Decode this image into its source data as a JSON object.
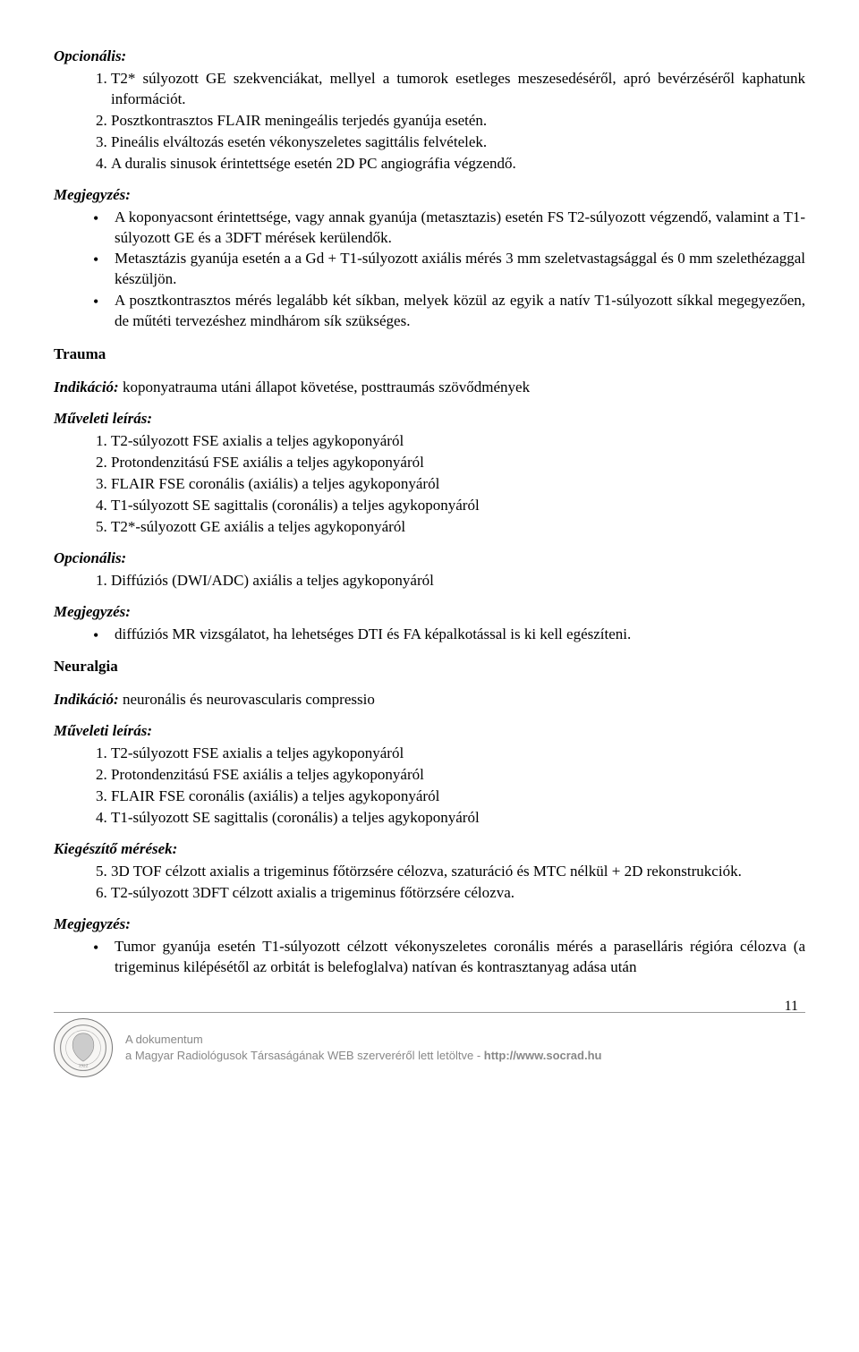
{
  "section1": {
    "opcionalis_label": "Opcionális:",
    "opcionalis_items": [
      "T2* súlyozott GE szekvenciákat, mellyel a tumorok esetleges meszesedéséről, apró bevérzéséről kaphatunk információt.",
      "Posztkontrasztos FLAIR meningeális terjedés gyanúja esetén.",
      "Pineális elváltozás esetén vékonyszeletes sagittális felvételek.",
      "A duralis sinusok érintettsége esetén 2D PC angiográfia végzendő."
    ],
    "megjegyzes_label": "Megjegyzés:",
    "megjegyzes_items": [
      "A koponyacsont érintettsége, vagy annak gyanúja (metasztazis) esetén FS T2-súlyozott végzendő, valamint a T1-súlyozott GE és a 3DFT mérések kerülendők.",
      "Metasztázis gyanúja esetén a a Gd + T1-súlyozott axiális mérés 3 mm szeletvastagsággal és 0 mm szelethézaggal készüljön.",
      "A posztkontrasztos mérés legalább két síkban, melyek közül az egyik a natív T1-súlyozott síkkal megegyezően, de műtéti tervezéshez mindhárom sík szükséges."
    ]
  },
  "trauma": {
    "heading": "Trauma",
    "indikacio_label": "Indikáció:",
    "indikacio_text": " koponyatrauma utáni állapot követése, posttraumás szövődmények",
    "muveleti_label": "Műveleti leírás:",
    "muveleti_items": [
      "T2-súlyozott FSE axialis a teljes agykoponyáról",
      "Protondenzitású FSE axiális a teljes agykoponyáról",
      "FLAIR FSE coronális (axiális) a teljes agykoponyáról",
      "T1-súlyozott SE sagittalis (coronális) a teljes agykoponyáról",
      "T2*-súlyozott GE axiális a teljes agykoponyáról"
    ],
    "opcionalis_label": "Opcionális:",
    "opcionalis_items": [
      "Diffúziós (DWI/ADC) axiális a teljes agykoponyáról"
    ],
    "megjegyzes_label": "Megjegyzés:",
    "megjegyzes_items": [
      "diffúziós MR vizsgálatot, ha lehetséges DTI és FA képalkotással is ki kell egészíteni."
    ]
  },
  "neuralgia": {
    "heading": "Neuralgia",
    "indikacio_label": "Indikáció:",
    "indikacio_text": " neuronális és neurovascularis compressio",
    "muveleti_label": "Műveleti leírás:",
    "muveleti_items": [
      "T2-súlyozott FSE axialis a teljes agykoponyáról",
      "Protondenzitású FSE axiális a teljes agykoponyáról",
      "FLAIR FSE coronális (axiális) a teljes agykoponyáról",
      "T1-súlyozott SE sagittalis (coronális) a teljes agykoponyáról"
    ],
    "kiegeszito_label": "Kiegészítő mérések:",
    "kiegeszito_start": 5,
    "kiegeszito_items": [
      "3D TOF célzott axialis a trigeminus főtörzsére célozva, szaturáció és MTC nélkül + 2D rekonstrukciók.",
      "T2-súlyozott 3DFT célzott axialis a trigeminus főtörzsére célozva."
    ],
    "megjegyzes_label": "Megjegyzés:",
    "megjegyzes_items": [
      "Tumor gyanúja esetén T1-súlyozott célzott vékonyszeletes coronális mérés a paraselláris régióra célozva (a trigeminus kilépésétől az orbitát is belefoglalva) natívan és kontrasztanyag adása után"
    ]
  },
  "footer": {
    "line1": "A dokumentum",
    "line2_a": "a Magyar Radiológusok Társaságának WEB szerveréről lett letöltve  -  ",
    "line2_b": "http://www.socrad.hu",
    "page": "11"
  }
}
